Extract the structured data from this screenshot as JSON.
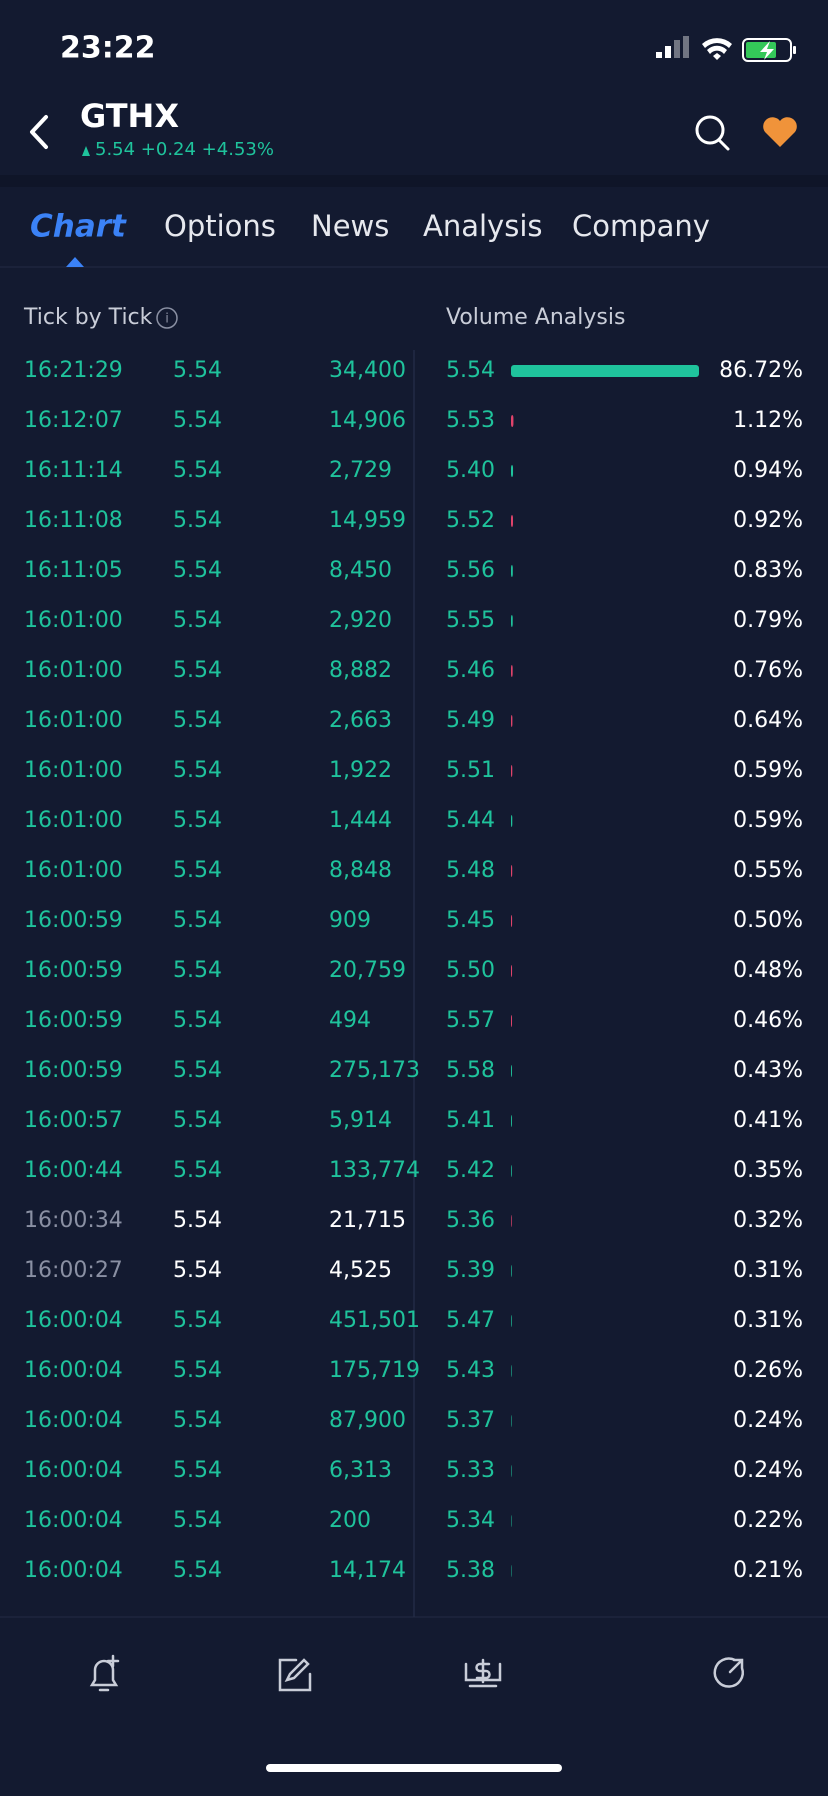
{
  "status": {
    "time": "23:22"
  },
  "header": {
    "symbol": "GTHX",
    "quote": "5.54 +0.24 +4.53%"
  },
  "tabs": [
    "Chart",
    "Options",
    "News",
    "Analysis",
    "Company"
  ],
  "tick_by_tick": {
    "title": "Tick by Tick",
    "rows": [
      {
        "time": "16:21:29",
        "price": "5.54",
        "volume": "34,400",
        "dim": false
      },
      {
        "time": "16:12:07",
        "price": "5.54",
        "volume": "14,906",
        "dim": false
      },
      {
        "time": "16:11:14",
        "price": "5.54",
        "volume": "2,729",
        "dim": false
      },
      {
        "time": "16:11:08",
        "price": "5.54",
        "volume": "14,959",
        "dim": false
      },
      {
        "time": "16:11:05",
        "price": "5.54",
        "volume": "8,450",
        "dim": false
      },
      {
        "time": "16:01:00",
        "price": "5.54",
        "volume": "2,920",
        "dim": false
      },
      {
        "time": "16:01:00",
        "price": "5.54",
        "volume": "8,882",
        "dim": false
      },
      {
        "time": "16:01:00",
        "price": "5.54",
        "volume": "2,663",
        "dim": false
      },
      {
        "time": "16:01:00",
        "price": "5.54",
        "volume": "1,922",
        "dim": false
      },
      {
        "time": "16:01:00",
        "price": "5.54",
        "volume": "1,444",
        "dim": false
      },
      {
        "time": "16:01:00",
        "price": "5.54",
        "volume": "8,848",
        "dim": false
      },
      {
        "time": "16:00:59",
        "price": "5.54",
        "volume": "909",
        "dim": false
      },
      {
        "time": "16:00:59",
        "price": "5.54",
        "volume": "20,759",
        "dim": false
      },
      {
        "time": "16:00:59",
        "price": "5.54",
        "volume": "494",
        "dim": false
      },
      {
        "time": "16:00:59",
        "price": "5.54",
        "volume": "275,173",
        "dim": false
      },
      {
        "time": "16:00:57",
        "price": "5.54",
        "volume": "5,914",
        "dim": false
      },
      {
        "time": "16:00:44",
        "price": "5.54",
        "volume": "133,774",
        "dim": false
      },
      {
        "time": "16:00:34",
        "price": "5.54",
        "volume": "21,715",
        "dim": true
      },
      {
        "time": "16:00:27",
        "price": "5.54",
        "volume": "4,525",
        "dim": true
      },
      {
        "time": "16:00:04",
        "price": "5.54",
        "volume": "451,501",
        "dim": false
      },
      {
        "time": "16:00:04",
        "price": "5.54",
        "volume": "175,719",
        "dim": false
      },
      {
        "time": "16:00:04",
        "price": "5.54",
        "volume": "87,900",
        "dim": false
      },
      {
        "time": "16:00:04",
        "price": "5.54",
        "volume": "6,313",
        "dim": false
      },
      {
        "time": "16:00:04",
        "price": "5.54",
        "volume": "200",
        "dim": false
      },
      {
        "time": "16:00:04",
        "price": "5.54",
        "volume": "14,174",
        "dim": false
      }
    ]
  },
  "volume_analysis": {
    "title": "Volume Analysis",
    "rows": [
      {
        "price": "5.54",
        "percent": 86.72,
        "label": "86.72%",
        "color": "#1fc39c"
      },
      {
        "price": "5.53",
        "percent": 1.12,
        "label": "1.12%",
        "color": "#e0436b"
      },
      {
        "price": "5.40",
        "percent": 0.94,
        "label": "0.94%",
        "color": "#1fc39c"
      },
      {
        "price": "5.52",
        "percent": 0.92,
        "label": "0.92%",
        "color": "#e0436b"
      },
      {
        "price": "5.56",
        "percent": 0.83,
        "label": "0.83%",
        "color": "#1fc39c"
      },
      {
        "price": "5.55",
        "percent": 0.79,
        "label": "0.79%",
        "color": "#1fc39c"
      },
      {
        "price": "5.46",
        "percent": 0.76,
        "label": "0.76%",
        "color": "#e0436b"
      },
      {
        "price": "5.49",
        "percent": 0.64,
        "label": "0.64%",
        "color": "#e0436b"
      },
      {
        "price": "5.51",
        "percent": 0.59,
        "label": "0.59%",
        "color": "#e0436b"
      },
      {
        "price": "5.44",
        "percent": 0.59,
        "label": "0.59%",
        "color": "#1fc39c"
      },
      {
        "price": "5.48",
        "percent": 0.55,
        "label": "0.55%",
        "color": "#e0436b"
      },
      {
        "price": "5.45",
        "percent": 0.5,
        "label": "0.50%",
        "color": "#e0436b"
      },
      {
        "price": "5.50",
        "percent": 0.48,
        "label": "0.48%",
        "color": "#e0436b"
      },
      {
        "price": "5.57",
        "percent": 0.46,
        "label": "0.46%",
        "color": "#e0436b"
      },
      {
        "price": "5.58",
        "percent": 0.43,
        "label": "0.43%",
        "color": "#1fc39c"
      },
      {
        "price": "5.41",
        "percent": 0.41,
        "label": "0.41%",
        "color": "#1fc39c"
      },
      {
        "price": "5.42",
        "percent": 0.35,
        "label": "0.35%",
        "color": "#1fc39c"
      },
      {
        "price": "5.36",
        "percent": 0.32,
        "label": "0.32%",
        "color": "#e0436b"
      },
      {
        "price": "5.39",
        "percent": 0.31,
        "label": "0.31%",
        "color": "#1fc39c"
      },
      {
        "price": "5.47",
        "percent": 0.31,
        "label": "0.31%",
        "color": "#1fc39c"
      },
      {
        "price": "5.43",
        "percent": 0.26,
        "label": "0.26%",
        "color": "#1fc39c"
      },
      {
        "price": "5.37",
        "percent": 0.24,
        "label": "0.24%",
        "color": "#1fc39c"
      },
      {
        "price": "5.33",
        "percent": 0.24,
        "label": "0.24%",
        "color": "#1fc39c"
      },
      {
        "price": "5.34",
        "percent": 0.22,
        "label": "0.22%",
        "color": "#1fc39c"
      },
      {
        "price": "5.38",
        "percent": 0.21,
        "label": "0.21%",
        "color": "#1fc39c"
      }
    ]
  }
}
